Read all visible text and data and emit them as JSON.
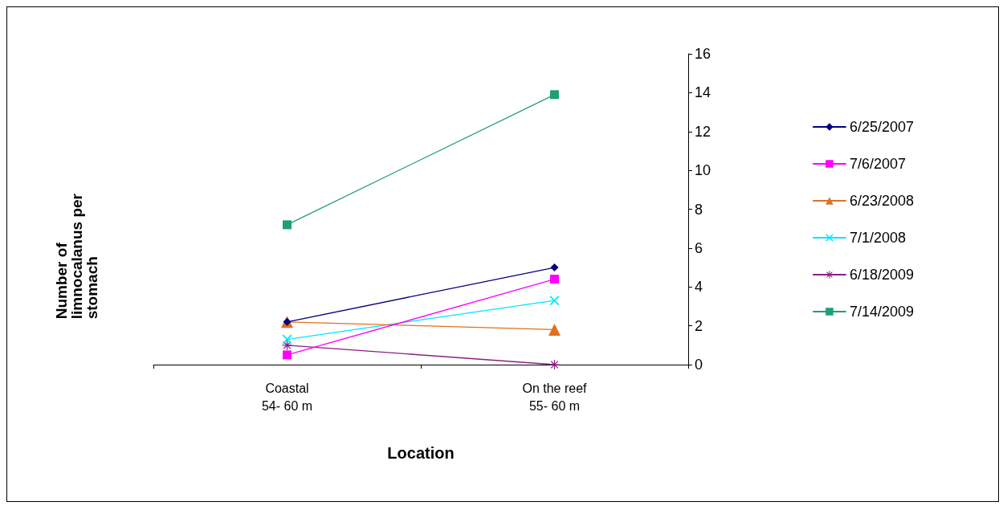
{
  "chart_data": {
    "type": "line",
    "xlabel": "Location",
    "ylabel": "Number of limnocalanus per stomach",
    "categories": [
      "Coastal\n54- 60 m",
      "On the reef\n55- 60 m"
    ],
    "series": [
      {
        "name": "6/25/2007",
        "color": "#000080",
        "marker": "diamond",
        "values": [
          2.2,
          5.0
        ]
      },
      {
        "name": "7/6/2007",
        "color": "#ff00ff",
        "marker": "square",
        "values": [
          0.5,
          4.4
        ]
      },
      {
        "name": "6/23/2008",
        "color": "#e07020",
        "marker": "triangle",
        "values": [
          2.2,
          1.8
        ]
      },
      {
        "name": "7/1/2008",
        "color": "#00e5ff",
        "marker": "cross",
        "values": [
          1.3,
          3.3
        ]
      },
      {
        "name": "6/18/2009",
        "color": "#8b1f7f",
        "marker": "star",
        "values": [
          1.0,
          0
        ]
      },
      {
        "name": "7/14/2009",
        "color": "#1f9e7a",
        "marker": "square",
        "values": [
          7.2,
          13.9
        ]
      }
    ],
    "ylim": [
      0,
      16
    ],
    "yticks": [
      0,
      2,
      4,
      6,
      8,
      10,
      12,
      14,
      16
    ],
    "grid": false,
    "legend": "right",
    "line_style": "solid"
  }
}
